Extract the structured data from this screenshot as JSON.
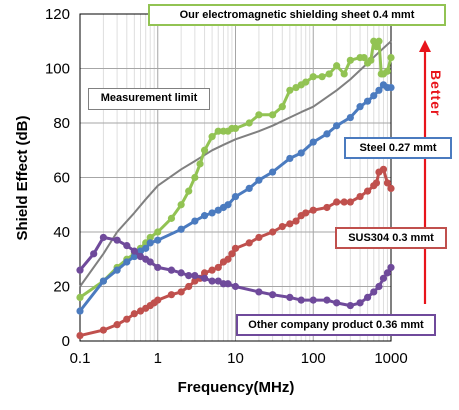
{
  "chart_data": {
    "type": "line",
    "title": "",
    "xlabel": "Frequency(MHz)",
    "ylabel": "Shield Effect (dB)",
    "xscale": "log",
    "xlim": [
      0.1,
      1000
    ],
    "ylim": [
      0,
      120
    ],
    "xticks": [
      0.1,
      1,
      10,
      100,
      1000
    ],
    "xtick_labels": [
      "0.1",
      "1",
      "10",
      "100",
      "1000"
    ],
    "yticks": [
      0,
      20,
      40,
      60,
      80,
      100,
      120
    ],
    "ytick_labels": [
      "0",
      "20",
      "40",
      "60",
      "80",
      "100",
      "120"
    ],
    "grid": true,
    "better_label": "Better",
    "series": [
      {
        "name": "Measurement limit",
        "color": "#808080",
        "markers": false,
        "label": "Measurement limit",
        "x": [
          0.1,
          0.2,
          0.3,
          0.5,
          0.7,
          1,
          2,
          3,
          5,
          7,
          10,
          20,
          30,
          50,
          70,
          100,
          200,
          300,
          500,
          700,
          1000
        ],
        "y": [
          20,
          32,
          40,
          47,
          52,
          57,
          63,
          66,
          70,
          72,
          74,
          77,
          79,
          82,
          84,
          86,
          92,
          96,
          102,
          106,
          110
        ]
      },
      {
        "name": "Our electromagnetic shielding sheet 0.4 mmt",
        "color": "#92c353",
        "markers": true,
        "label": "Our electromagnetic shielding sheet  0.4 mmt",
        "x": [
          0.1,
          0.2,
          0.3,
          0.4,
          0.5,
          0.6,
          0.7,
          0.8,
          1,
          1.5,
          2,
          2.5,
          3,
          3.5,
          4,
          5,
          6,
          7,
          8,
          9,
          10,
          15,
          20,
          30,
          40,
          50,
          60,
          70,
          80,
          100,
          130,
          160,
          200,
          250,
          300,
          400,
          450,
          500,
          550,
          600,
          650,
          700,
          750,
          800,
          900,
          1000
        ],
        "y": [
          16,
          22,
          27,
          30,
          32,
          34,
          36,
          38,
          40,
          45,
          50,
          55,
          60,
          65,
          70,
          75,
          77,
          77,
          77,
          78,
          78,
          80,
          83,
          83,
          86,
          92,
          93,
          94,
          95,
          97,
          97,
          98,
          101,
          98,
          103,
          104,
          104,
          102,
          103,
          110,
          108,
          110,
          98,
          98,
          99,
          104
        ]
      },
      {
        "name": "Steel 0.27 mmt",
        "color": "#4b7bbf",
        "markers": true,
        "label": "Steel 0.27 mmt",
        "x": [
          0.1,
          0.2,
          0.3,
          0.4,
          0.5,
          0.6,
          0.7,
          0.8,
          1,
          2,
          3,
          4,
          5,
          6,
          7,
          8,
          10,
          15,
          20,
          30,
          50,
          70,
          100,
          150,
          200,
          300,
          400,
          500,
          600,
          700,
          800,
          900,
          1000
        ],
        "y": [
          11,
          22,
          26,
          29,
          31,
          33,
          34,
          36,
          37,
          41,
          44,
          46,
          47,
          48,
          49,
          50,
          53,
          56,
          59,
          62,
          67,
          69,
          73,
          76,
          79,
          82,
          86,
          88,
          90,
          92,
          94,
          93,
          93
        ]
      },
      {
        "name": "SUS304 0.3 mmt",
        "color": "#c0504d",
        "markers": true,
        "label": "SUS304 0.3 mmt",
        "x": [
          0.1,
          0.2,
          0.3,
          0.4,
          0.5,
          0.6,
          0.7,
          0.8,
          0.9,
          1,
          1.5,
          2,
          2.5,
          3,
          3.5,
          4,
          5,
          6,
          7,
          8,
          9,
          10,
          15,
          20,
          30,
          40,
          50,
          60,
          70,
          80,
          100,
          150,
          200,
          250,
          300,
          400,
          500,
          600,
          650,
          700,
          800,
          900,
          1000
        ],
        "y": [
          2,
          4,
          6,
          8,
          10,
          11,
          12,
          13,
          14,
          15,
          17,
          18,
          20,
          22,
          23,
          25,
          26,
          27,
          29,
          30,
          32,
          34,
          36,
          38,
          40,
          42,
          43,
          44,
          46,
          47,
          48,
          49,
          51,
          51,
          51,
          53,
          55,
          57,
          58,
          62,
          63,
          58,
          56
        ]
      },
      {
        "name": "Other company product 0.36 mmt",
        "color": "#6f4a9b",
        "markers": true,
        "label": "Other company product 0.36 mmt",
        "x": [
          0.1,
          0.15,
          0.2,
          0.3,
          0.4,
          0.5,
          0.6,
          0.7,
          0.8,
          1,
          1.5,
          2,
          2.5,
          3,
          4,
          5,
          6,
          7,
          8,
          10,
          20,
          30,
          50,
          70,
          100,
          150,
          200,
          300,
          400,
          500,
          600,
          700,
          800,
          900,
          1000
        ],
        "y": [
          26,
          32,
          38,
          37,
          35,
          33,
          31,
          30,
          29,
          27,
          26,
          25,
          24,
          24,
          23,
          22,
          22,
          21,
          21,
          20,
          18,
          17,
          16,
          15,
          15,
          15,
          14,
          13,
          14,
          16,
          18,
          20,
          23,
          25,
          27
        ]
      }
    ]
  }
}
